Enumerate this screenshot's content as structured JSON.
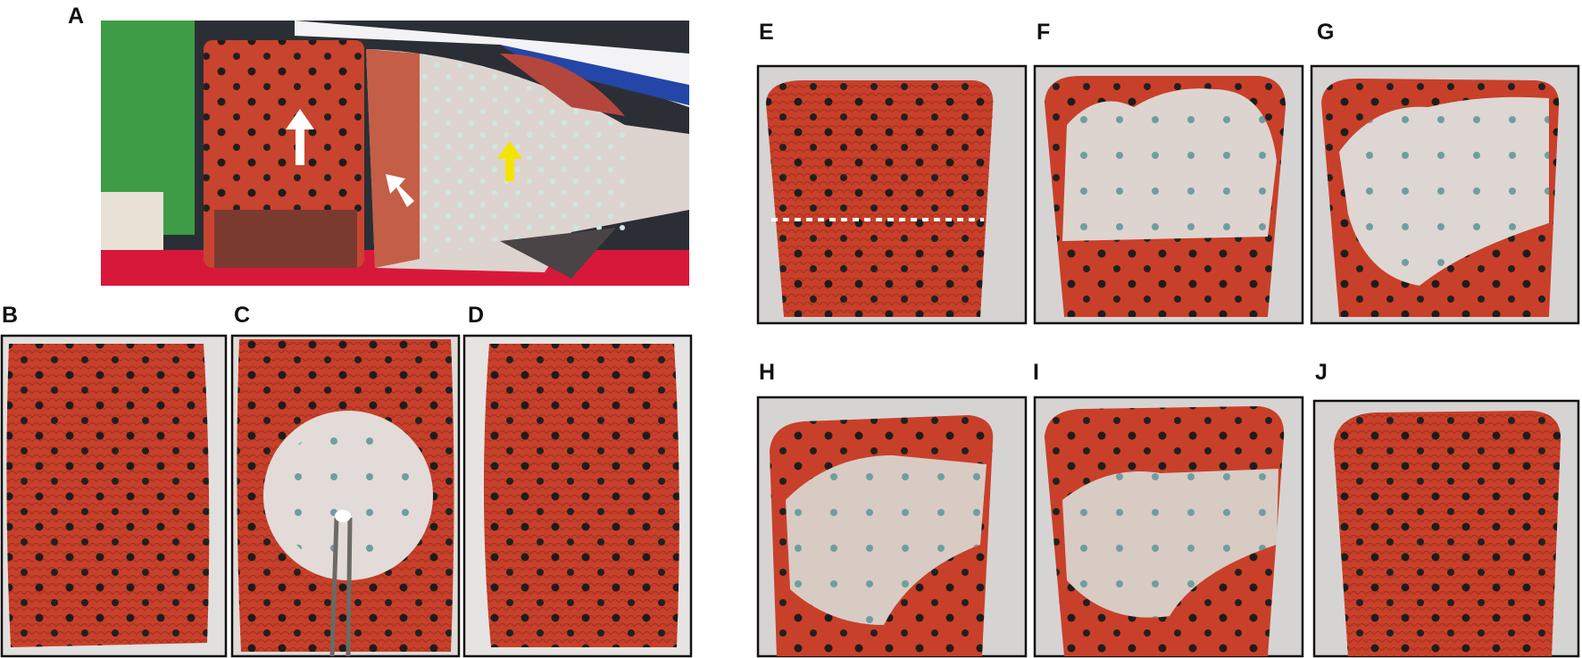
{
  "panels": [
    {
      "label": "A"
    },
    {
      "label": "B"
    },
    {
      "label": "C"
    },
    {
      "label": "D"
    },
    {
      "label": "E"
    },
    {
      "label": "F"
    },
    {
      "label": "G"
    },
    {
      "label": "H"
    },
    {
      "label": "I"
    },
    {
      "label": "J"
    }
  ]
}
